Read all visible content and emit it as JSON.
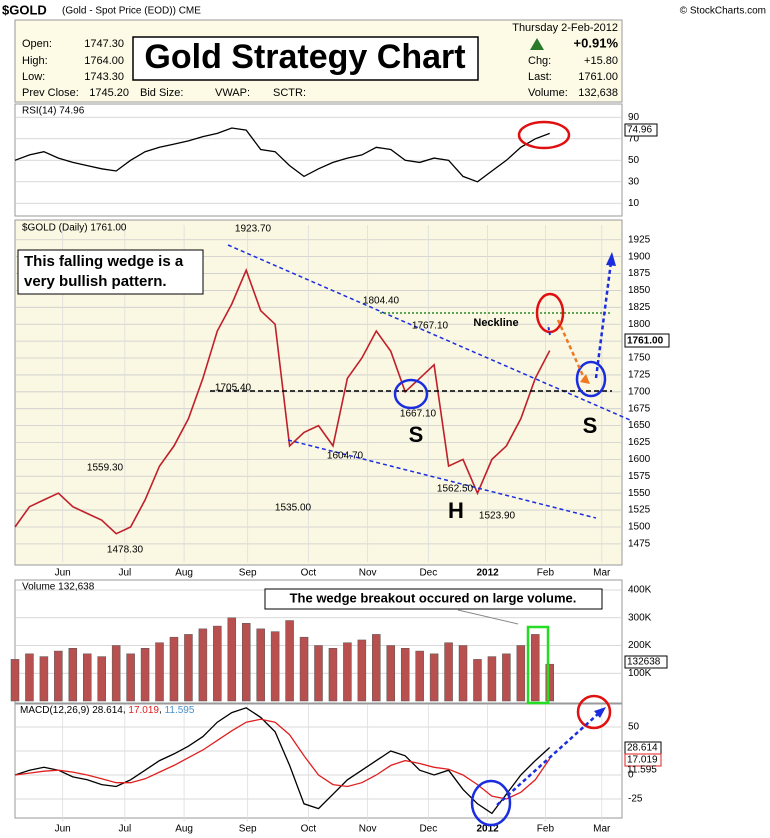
{
  "header": {
    "symbol": "$GOLD",
    "description": "(Gold - Spot Price (EOD)) CME",
    "credit": "© StockCharts.com",
    "date": "Thursday  2-Feb-2012",
    "fields": [
      {
        "label": "Open:",
        "value": "1747.30"
      },
      {
        "label": "High:",
        "value": "1764.00"
      },
      {
        "label": "Low:",
        "value": "1743.30"
      },
      {
        "label": "Prev Close:",
        "value": "1745.20"
      }
    ],
    "extra": [
      "Bid Size:",
      "VWAP:",
      "SCTR:"
    ],
    "change_pct": "+0.91%",
    "right_fields": [
      {
        "label": "Chg:",
        "value": "+15.80"
      },
      {
        "label": "Last:",
        "value": "1761.00"
      },
      {
        "label": "Volume:",
        "value": "132,638"
      }
    ],
    "title": "Gold Strategy Chart"
  },
  "annotations": {
    "wedge_note": [
      "This falling wedge is a",
      "very bullish pattern."
    ],
    "neckline": "Neckline",
    "shoulder_left": "S",
    "head": "H",
    "shoulder_right": "S",
    "price_labels": [
      "1923.70",
      "1804.40",
      "1767.10",
      "1705.40",
      "1667.10",
      "1604.70",
      "1562.50",
      "1535.00",
      "1523.90",
      "1559.30",
      "1478.30"
    ],
    "volume_note": "The wedge breakout occured on large volume."
  },
  "chart_data": [
    {
      "type": "line",
      "title": "RSI(14) 74.96",
      "last_tag": "74.96",
      "color": "#000000",
      "x": [
        0,
        1,
        2,
        3,
        4,
        5,
        6,
        7,
        8,
        9,
        10,
        11,
        12,
        13,
        14,
        15,
        16,
        17,
        18,
        19,
        20,
        21,
        22,
        23,
        24,
        25,
        26,
        27,
        28,
        29,
        30,
        31,
        32,
        33,
        34,
        35,
        36,
        37
      ],
      "series": [
        {
          "name": "RSI(14)",
          "color": "#000000",
          "values": [
            50,
            55,
            58,
            52,
            48,
            45,
            42,
            40,
            50,
            58,
            62,
            65,
            68,
            72,
            75,
            80,
            78,
            60,
            58,
            45,
            35,
            42,
            48,
            52,
            55,
            62,
            60,
            50,
            48,
            52,
            50,
            35,
            30,
            40,
            50,
            62,
            70,
            74.96
          ]
        }
      ],
      "xlim": [
        0,
        42
      ],
      "ylim": [
        0,
        100
      ],
      "yticks": [
        10,
        30,
        50,
        70,
        90
      ]
    },
    {
      "type": "line",
      "title": "$GOLD (Daily) 1761.00",
      "last_tag": "1761.00",
      "x": [
        0,
        1,
        2,
        3,
        4,
        5,
        6,
        7,
        8,
        9,
        10,
        11,
        12,
        13,
        14,
        15,
        16,
        17,
        18,
        19,
        20,
        21,
        22,
        23,
        24,
        25,
        26,
        27,
        28,
        29,
        30,
        31,
        32,
        33,
        34,
        35,
        36,
        37
      ],
      "series": [
        {
          "name": "$GOLD",
          "color": "#c0202a",
          "values": [
            1500,
            1530,
            1540,
            1550,
            1530,
            1520,
            1510,
            1490,
            1500,
            1540,
            1590,
            1620,
            1660,
            1720,
            1790,
            1830,
            1880,
            1820,
            1800,
            1620,
            1640,
            1650,
            1620,
            1720,
            1750,
            1790,
            1760,
            1700,
            1720,
            1740,
            1590,
            1600,
            1550,
            1600,
            1620,
            1660,
            1720,
            1761
          ]
        }
      ],
      "xlim": [
        0,
        42
      ],
      "ylim": [
        1460,
        1935
      ],
      "yticks": [
        1475,
        1500,
        1525,
        1550,
        1575,
        1600,
        1625,
        1650,
        1675,
        1700,
        1725,
        1750,
        1775,
        1800,
        1825,
        1850,
        1875,
        1900,
        1925
      ],
      "xticks": [
        {
          "value": 3.3,
          "label": "Jun"
        },
        {
          "value": 7.6,
          "label": "Jul"
        },
        {
          "value": 11.7,
          "label": "Aug"
        },
        {
          "value": 16.1,
          "label": "Sep"
        },
        {
          "value": 20.3,
          "label": "Oct"
        },
        {
          "value": 24.4,
          "label": "Nov"
        },
        {
          "value": 28.6,
          "label": "Dec"
        },
        {
          "value": 32.7,
          "label": "2012"
        },
        {
          "value": 36.7,
          "label": "Feb"
        },
        {
          "value": 40.6,
          "label": "Mar"
        }
      ]
    },
    {
      "type": "bar",
      "title": "Volume 132,638",
      "last_tag": "132638",
      "x": [
        0,
        1,
        2,
        3,
        4,
        5,
        6,
        7,
        8,
        9,
        10,
        11,
        12,
        13,
        14,
        15,
        16,
        17,
        18,
        19,
        20,
        21,
        22,
        23,
        24,
        25,
        26,
        27,
        28,
        29,
        30,
        31,
        32,
        33,
        34,
        35,
        36,
        37
      ],
      "series": [
        {
          "name": "Volume",
          "color": "#b85050",
          "values": [
            150000,
            170000,
            160000,
            180000,
            190000,
            170000,
            160000,
            200000,
            170000,
            190000,
            210000,
            230000,
            240000,
            260000,
            270000,
            300000,
            280000,
            260000,
            250000,
            290000,
            230000,
            200000,
            190000,
            210000,
            220000,
            240000,
            200000,
            190000,
            180000,
            170000,
            210000,
            200000,
            150000,
            160000,
            170000,
            200000,
            240000,
            132638
          ]
        }
      ],
      "xlim": [
        0,
        42
      ],
      "ylim": [
        0,
        400000
      ],
      "yticks": [
        {
          "value": 100000,
          "label": "100K"
        },
        {
          "value": 200000,
          "label": "200K"
        },
        {
          "value": 300000,
          "label": "300K"
        },
        {
          "value": 400000,
          "label": "400K"
        }
      ]
    },
    {
      "type": "line",
      "title": "MACD(12,26,9)",
      "tags": [
        "28.614",
        "17.019",
        "11.595"
      ],
      "x": [
        0,
        1,
        2,
        3,
        4,
        5,
        6,
        7,
        8,
        9,
        10,
        11,
        12,
        13,
        14,
        15,
        16,
        17,
        18,
        19,
        20,
        21,
        22,
        23,
        24,
        25,
        26,
        27,
        28,
        29,
        30,
        31,
        32,
        33,
        34,
        35,
        36,
        37
      ],
      "series": [
        {
          "name": "MACD",
          "color": "#000000",
          "values": [
            0,
            5,
            8,
            5,
            -2,
            -5,
            -10,
            -12,
            -5,
            5,
            15,
            22,
            30,
            40,
            55,
            65,
            70,
            60,
            45,
            10,
            -30,
            -35,
            -20,
            -5,
            5,
            15,
            25,
            20,
            5,
            0,
            5,
            -15,
            -30,
            -40,
            -20,
            0,
            15,
            28.614
          ]
        },
        {
          "name": "Signal",
          "color": "#e02020",
          "values": [
            0,
            2,
            4,
            5,
            3,
            0,
            -4,
            -8,
            -8,
            -4,
            3,
            10,
            18,
            26,
            36,
            46,
            55,
            58,
            55,
            42,
            20,
            0,
            -10,
            -12,
            -8,
            0,
            10,
            15,
            12,
            8,
            6,
            0,
            -10,
            -22,
            -25,
            -18,
            -5,
            17.019
          ]
        }
      ],
      "xlim": [
        0,
        42
      ],
      "ylim": [
        -40,
        65
      ],
      "yticks": [
        -25,
        0,
        25,
        50
      ],
      "xticks": [
        {
          "value": 3.3,
          "label": "Jun"
        },
        {
          "value": 7.6,
          "label": "Jul"
        },
        {
          "value": 11.7,
          "label": "Aug"
        },
        {
          "value": 16.1,
          "label": "Sep"
        },
        {
          "value": 20.3,
          "label": "Oct"
        },
        {
          "value": 24.4,
          "label": "Nov"
        },
        {
          "value": 28.6,
          "label": "Dec"
        },
        {
          "value": 32.7,
          "label": "2012"
        },
        {
          "value": 36.7,
          "label": "Feb"
        },
        {
          "value": 40.6,
          "label": "Mar"
        }
      ]
    }
  ]
}
